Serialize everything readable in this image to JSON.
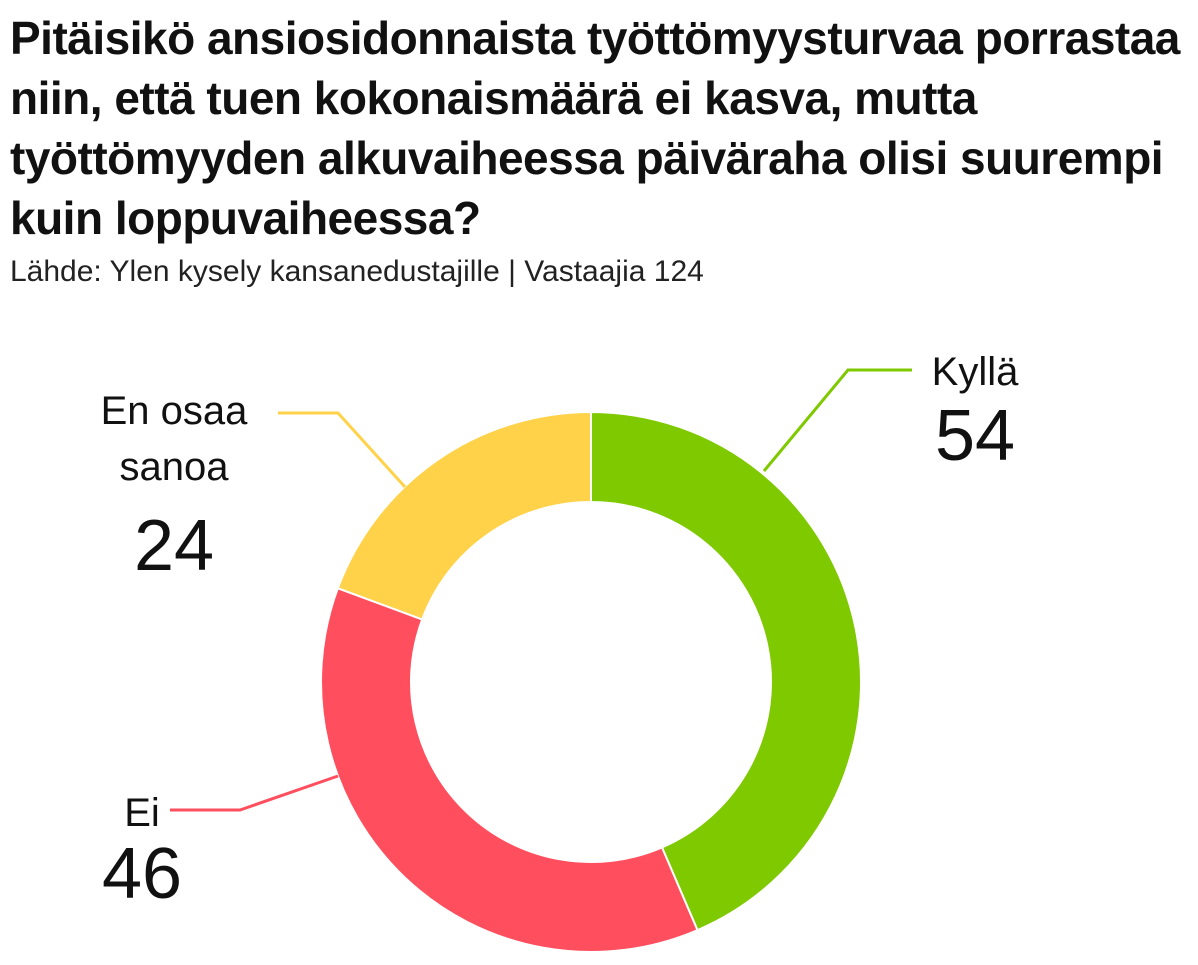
{
  "title": "Pitäisikö ansiosidonnaista työttömyysturvaa porrastaa niin, että tuen kokonaismäärä ei kasva, mutta työttömyyden alkuvaiheessa päiväraha olisi suurempi kuin loppuvaiheessa?",
  "source": "Lähde: Ylen kysely kansanedustajille | Vastaajia 124",
  "chart_data": {
    "type": "pie",
    "donut": true,
    "total_respondents": 124,
    "slices": [
      {
        "label": "Kyllä",
        "label_lines": [
          "Kyllä"
        ],
        "value": 54,
        "color": "#7fc900"
      },
      {
        "label": "Ei",
        "label_lines": [
          "Ei"
        ],
        "value": 46,
        "color": "#ff4f5e"
      },
      {
        "label": "En osaa sanoa",
        "label_lines": [
          "En osaa",
          "sanoa"
        ],
        "value": 24,
        "color": "#ffd24a"
      }
    ]
  }
}
